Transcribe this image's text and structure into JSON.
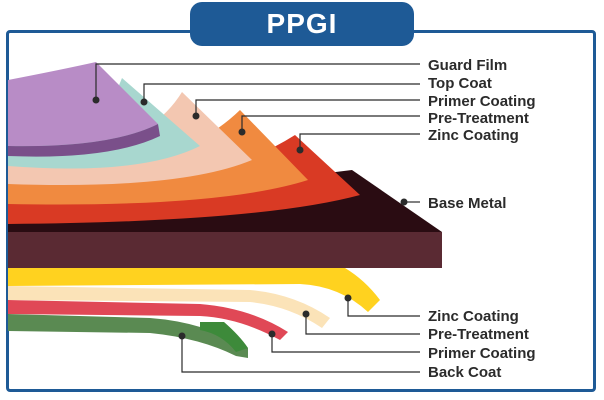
{
  "title": "PPGI",
  "colors": {
    "frame": "#1e5a96",
    "guard_film": "#b88cc6",
    "top_coat": "#a8d7cf",
    "primer": "#f3c7b1",
    "pretreatment": "#f08a40",
    "zinc": "#d93a24",
    "base_metal": "#5a2a33",
    "base_metal_top": "#2a0c12",
    "zinc_bottom": "#ffd21f",
    "pretreatment_bottom": "#fbe3b8",
    "primer_bottom": "#e04856",
    "back_coat": "#5a8a52"
  },
  "top_labels": [
    {
      "text": "Guard Film"
    },
    {
      "text": "Top Coat"
    },
    {
      "text": "Primer Coating"
    },
    {
      "text": "Pre-Treatment"
    },
    {
      "text": "Zinc Coating"
    }
  ],
  "middle_label": {
    "text": "Base Metal"
  },
  "bottom_labels": [
    {
      "text": "Zinc Coating"
    },
    {
      "text": "Pre-Treatment"
    },
    {
      "text": "Primer Coating"
    },
    {
      "text": "Back Coat"
    }
  ]
}
